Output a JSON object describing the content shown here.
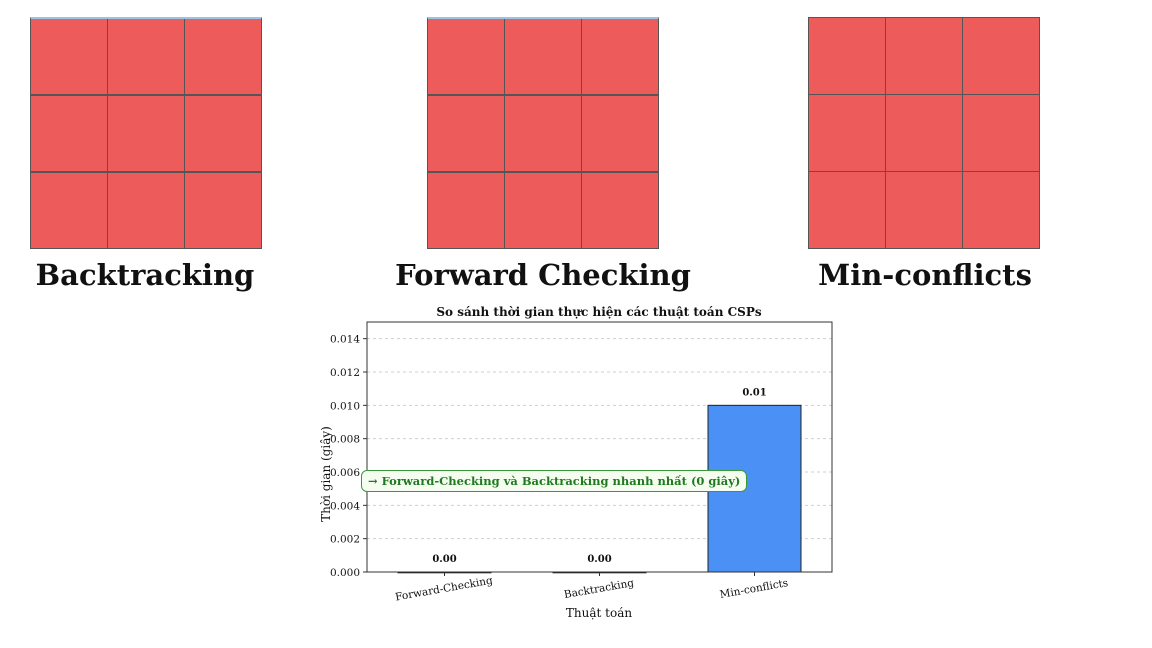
{
  "boards": [
    {
      "label": "Backtracking",
      "cell_color": "#ee5b5b"
    },
    {
      "label": "Forward Checking",
      "cell_color": "#ee5b5b"
    },
    {
      "label": "Min-conflicts",
      "cell_color": "#ee5b5b"
    }
  ],
  "annotation": "→ Forward-Checking và Backtracking nhanh nhất (0 giây)",
  "chart_data": {
    "type": "bar",
    "title": "So sánh thời gian thực hiện các thuật toán CSPs",
    "xlabel": "Thuật toán",
    "ylabel": "Thời gian (giây)",
    "categories": [
      "Forward-Checking",
      "Backtracking",
      "Min-conflicts"
    ],
    "values": [
      0.0,
      0.0,
      0.01
    ],
    "data_labels": [
      "0.00",
      "0.00",
      "0.01"
    ],
    "bar_color": "#4a90f5",
    "ylim": [
      0,
      0.015
    ],
    "yticks": [
      "0.000",
      "0.002",
      "0.004",
      "0.006",
      "0.008",
      "0.010",
      "0.012",
      "0.014"
    ],
    "ytick_values": [
      0,
      0.002,
      0.004,
      0.006,
      0.008,
      0.01,
      0.012,
      0.014
    ],
    "grid": true,
    "grid_axis": "y"
  }
}
